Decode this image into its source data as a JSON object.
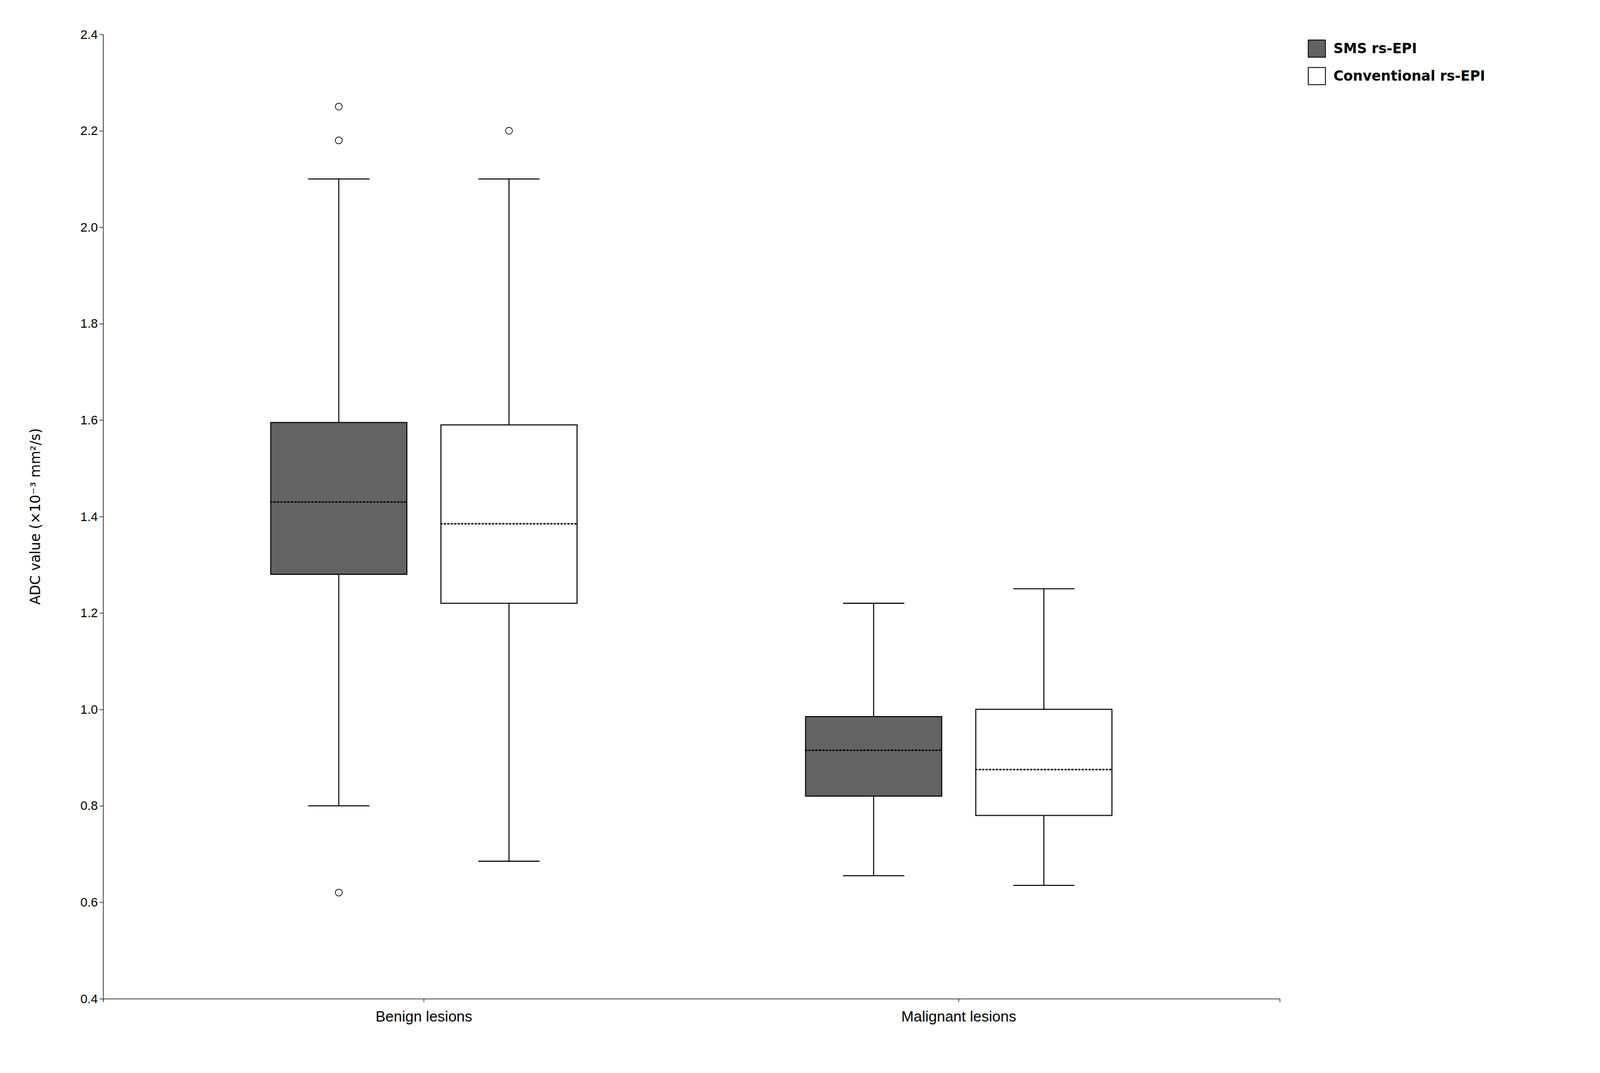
{
  "chart_data": {
    "type": "box",
    "y_label": "ADC value (×10⁻³ mm²/s)",
    "categories": [
      "Benign lesions",
      "Malignant lesions"
    ],
    "series": [
      {
        "name": "SMS rs-EPI",
        "color": "#636363",
        "values": [
          {
            "q1": 1.28,
            "median": 1.43,
            "q3": 1.595,
            "whisker_low": 0.8,
            "whisker_high": 2.1,
            "outliers": [
              2.18,
              2.25,
              0.62
            ]
          },
          {
            "q1": 0.82,
            "median": 0.915,
            "q3": 0.985,
            "whisker_low": 0.655,
            "whisker_high": 1.22,
            "outliers": []
          }
        ]
      },
      {
        "name": "Conventional rs-EPI",
        "color": "#ffffff",
        "values": [
          {
            "q1": 1.22,
            "median": 1.385,
            "q3": 1.59,
            "whisker_low": 0.685,
            "whisker_high": 2.1,
            "outliers": [
              2.2
            ]
          },
          {
            "q1": 0.78,
            "median": 0.875,
            "q3": 1.0,
            "whisker_low": 0.635,
            "whisker_high": 1.25,
            "outliers": []
          }
        ]
      }
    ],
    "ylim": [
      0.4,
      2.4
    ],
    "yticks": [
      0.4,
      0.6,
      0.8,
      {
        "value": 1.0,
        "label": "1.0"
      },
      1.2,
      1.4,
      1.6,
      1.8,
      {
        "value": 2.0,
        "label": "2.0"
      },
      2.2,
      2.4
    ],
    "grid": false,
    "legend": "right"
  }
}
